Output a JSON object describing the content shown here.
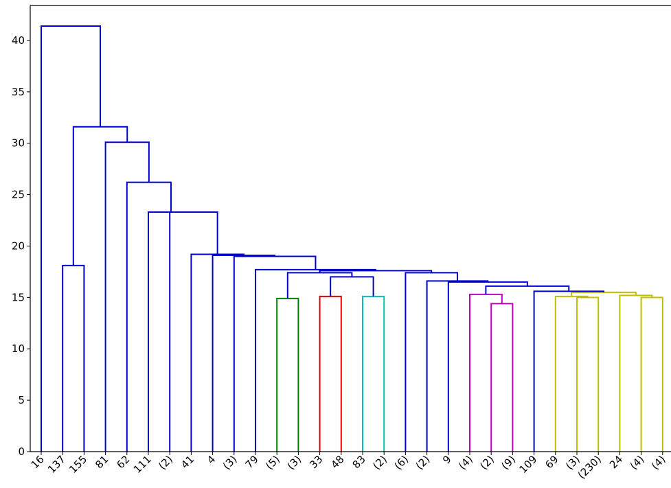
{
  "chart_data": {
    "type": "dendrogram",
    "title": "",
    "xlabel": "",
    "ylabel": "",
    "ylim": [
      0,
      43.4
    ],
    "yticks": [
      "0",
      "5",
      "10",
      "15",
      "20",
      "25",
      "30",
      "35",
      "40"
    ],
    "grid": false,
    "legend": "none",
    "leaves": [
      "16",
      "137",
      "155",
      "81",
      "62",
      "111",
      "(2)",
      "41",
      "4",
      "(3)",
      "79",
      "(5)",
      "(3)",
      "33",
      "48",
      "83",
      "(2)",
      "(6)",
      "(2)",
      "9",
      "(4)",
      "(2)",
      "(9)",
      "109",
      "69",
      "(3)",
      "(230)",
      "24",
      "(4)",
      "(4)"
    ],
    "colors": {
      "b": "#0000cc",
      "g": "#007f00",
      "r": "#e00000",
      "c": "#00bfbf",
      "m": "#bf00bf",
      "y": "#bfbf00"
    },
    "merges": [
      {
        "left": 1,
        "right": 2,
        "height": 18.1,
        "color": "b"
      },
      {
        "left": 11,
        "right": 12,
        "height": 14.9,
        "color": "g"
      },
      {
        "left": 13,
        "right": 14,
        "height": 15.1,
        "color": "r"
      },
      {
        "left": 15,
        "right": 16,
        "height": 15.1,
        "color": "c"
      },
      {
        "left": 21,
        "right": 22,
        "height": 14.4,
        "color": "m"
      },
      {
        "left": 20,
        "right": 34,
        "height": 15.3,
        "color": "m"
      },
      {
        "left": 25,
        "right": 26,
        "height": 15.0,
        "color": "y"
      },
      {
        "left": 24,
        "right": 36,
        "height": 15.1,
        "color": "y"
      },
      {
        "left": 28,
        "right": 29,
        "height": 15.0,
        "color": "y"
      },
      {
        "left": 27,
        "right": 38,
        "height": 15.2,
        "color": "y"
      },
      {
        "left": 37,
        "right": 39,
        "height": 15.5,
        "color": "y"
      },
      {
        "left": 32,
        "right": 33,
        "height": 17.0,
        "color": "b"
      },
      {
        "left": 31,
        "right": 41,
        "height": 17.4,
        "color": "b"
      },
      {
        "left": 23,
        "right": 40,
        "height": 15.6,
        "color": "b"
      },
      {
        "left": 35,
        "right": 43,
        "height": 16.1,
        "color": "b"
      },
      {
        "left": 19,
        "right": 44,
        "height": 16.5,
        "color": "b"
      },
      {
        "left": 18,
        "right": 45,
        "height": 16.6,
        "color": "b"
      },
      {
        "left": 17,
        "right": 46,
        "height": 17.4,
        "color": "b"
      },
      {
        "left": 42,
        "right": 47,
        "height": 17.6,
        "color": "b"
      },
      {
        "left": 10,
        "right": 48,
        "height": 17.7,
        "color": "b"
      },
      {
        "left": 9,
        "right": 49,
        "height": 19.0,
        "color": "b"
      },
      {
        "left": 8,
        "right": 50,
        "height": 19.1,
        "color": "b"
      },
      {
        "left": 7,
        "right": 51,
        "height": 19.2,
        "color": "b"
      },
      {
        "left": 6,
        "right": 52,
        "height": 23.3,
        "color": "b"
      },
      {
        "left": 5,
        "right": 53,
        "height": 23.3,
        "color": "b"
      },
      {
        "left": 4,
        "right": 54,
        "height": 26.2,
        "color": "b"
      },
      {
        "left": 3,
        "right": 55,
        "height": 30.1,
        "color": "b"
      },
      {
        "left": 30,
        "right": 56,
        "height": 31.6,
        "color": "b"
      },
      {
        "left": 0,
        "right": 57,
        "height": 41.4,
        "color": "b"
      }
    ]
  }
}
